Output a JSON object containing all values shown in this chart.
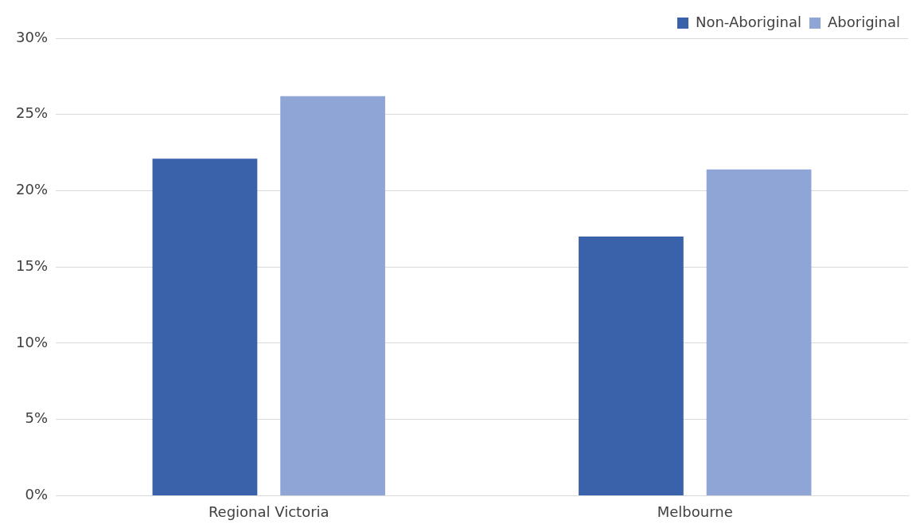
{
  "chart_data": {
    "type": "bar",
    "categories": [
      "Regional Victoria",
      "Melbourne"
    ],
    "series": [
      {
        "name": "Non-Aboriginal",
        "color": "#3a62ab",
        "values": [
          22.1,
          17.0
        ]
      },
      {
        "name": "Aboriginal",
        "color": "#8fa5d6",
        "values": [
          26.2,
          21.4
        ]
      }
    ],
    "ylim": [
      0,
      30
    ],
    "yticks": [
      {
        "value": 0,
        "label": "0%"
      },
      {
        "value": 5,
        "label": "5%"
      },
      {
        "value": 10,
        "label": "10%"
      },
      {
        "value": 15,
        "label": "15%"
      },
      {
        "value": 20,
        "label": "20%"
      },
      {
        "value": 25,
        "label": "25%"
      },
      {
        "value": 30,
        "label": "30%"
      }
    ],
    "grid": "y",
    "legend": "top right"
  }
}
